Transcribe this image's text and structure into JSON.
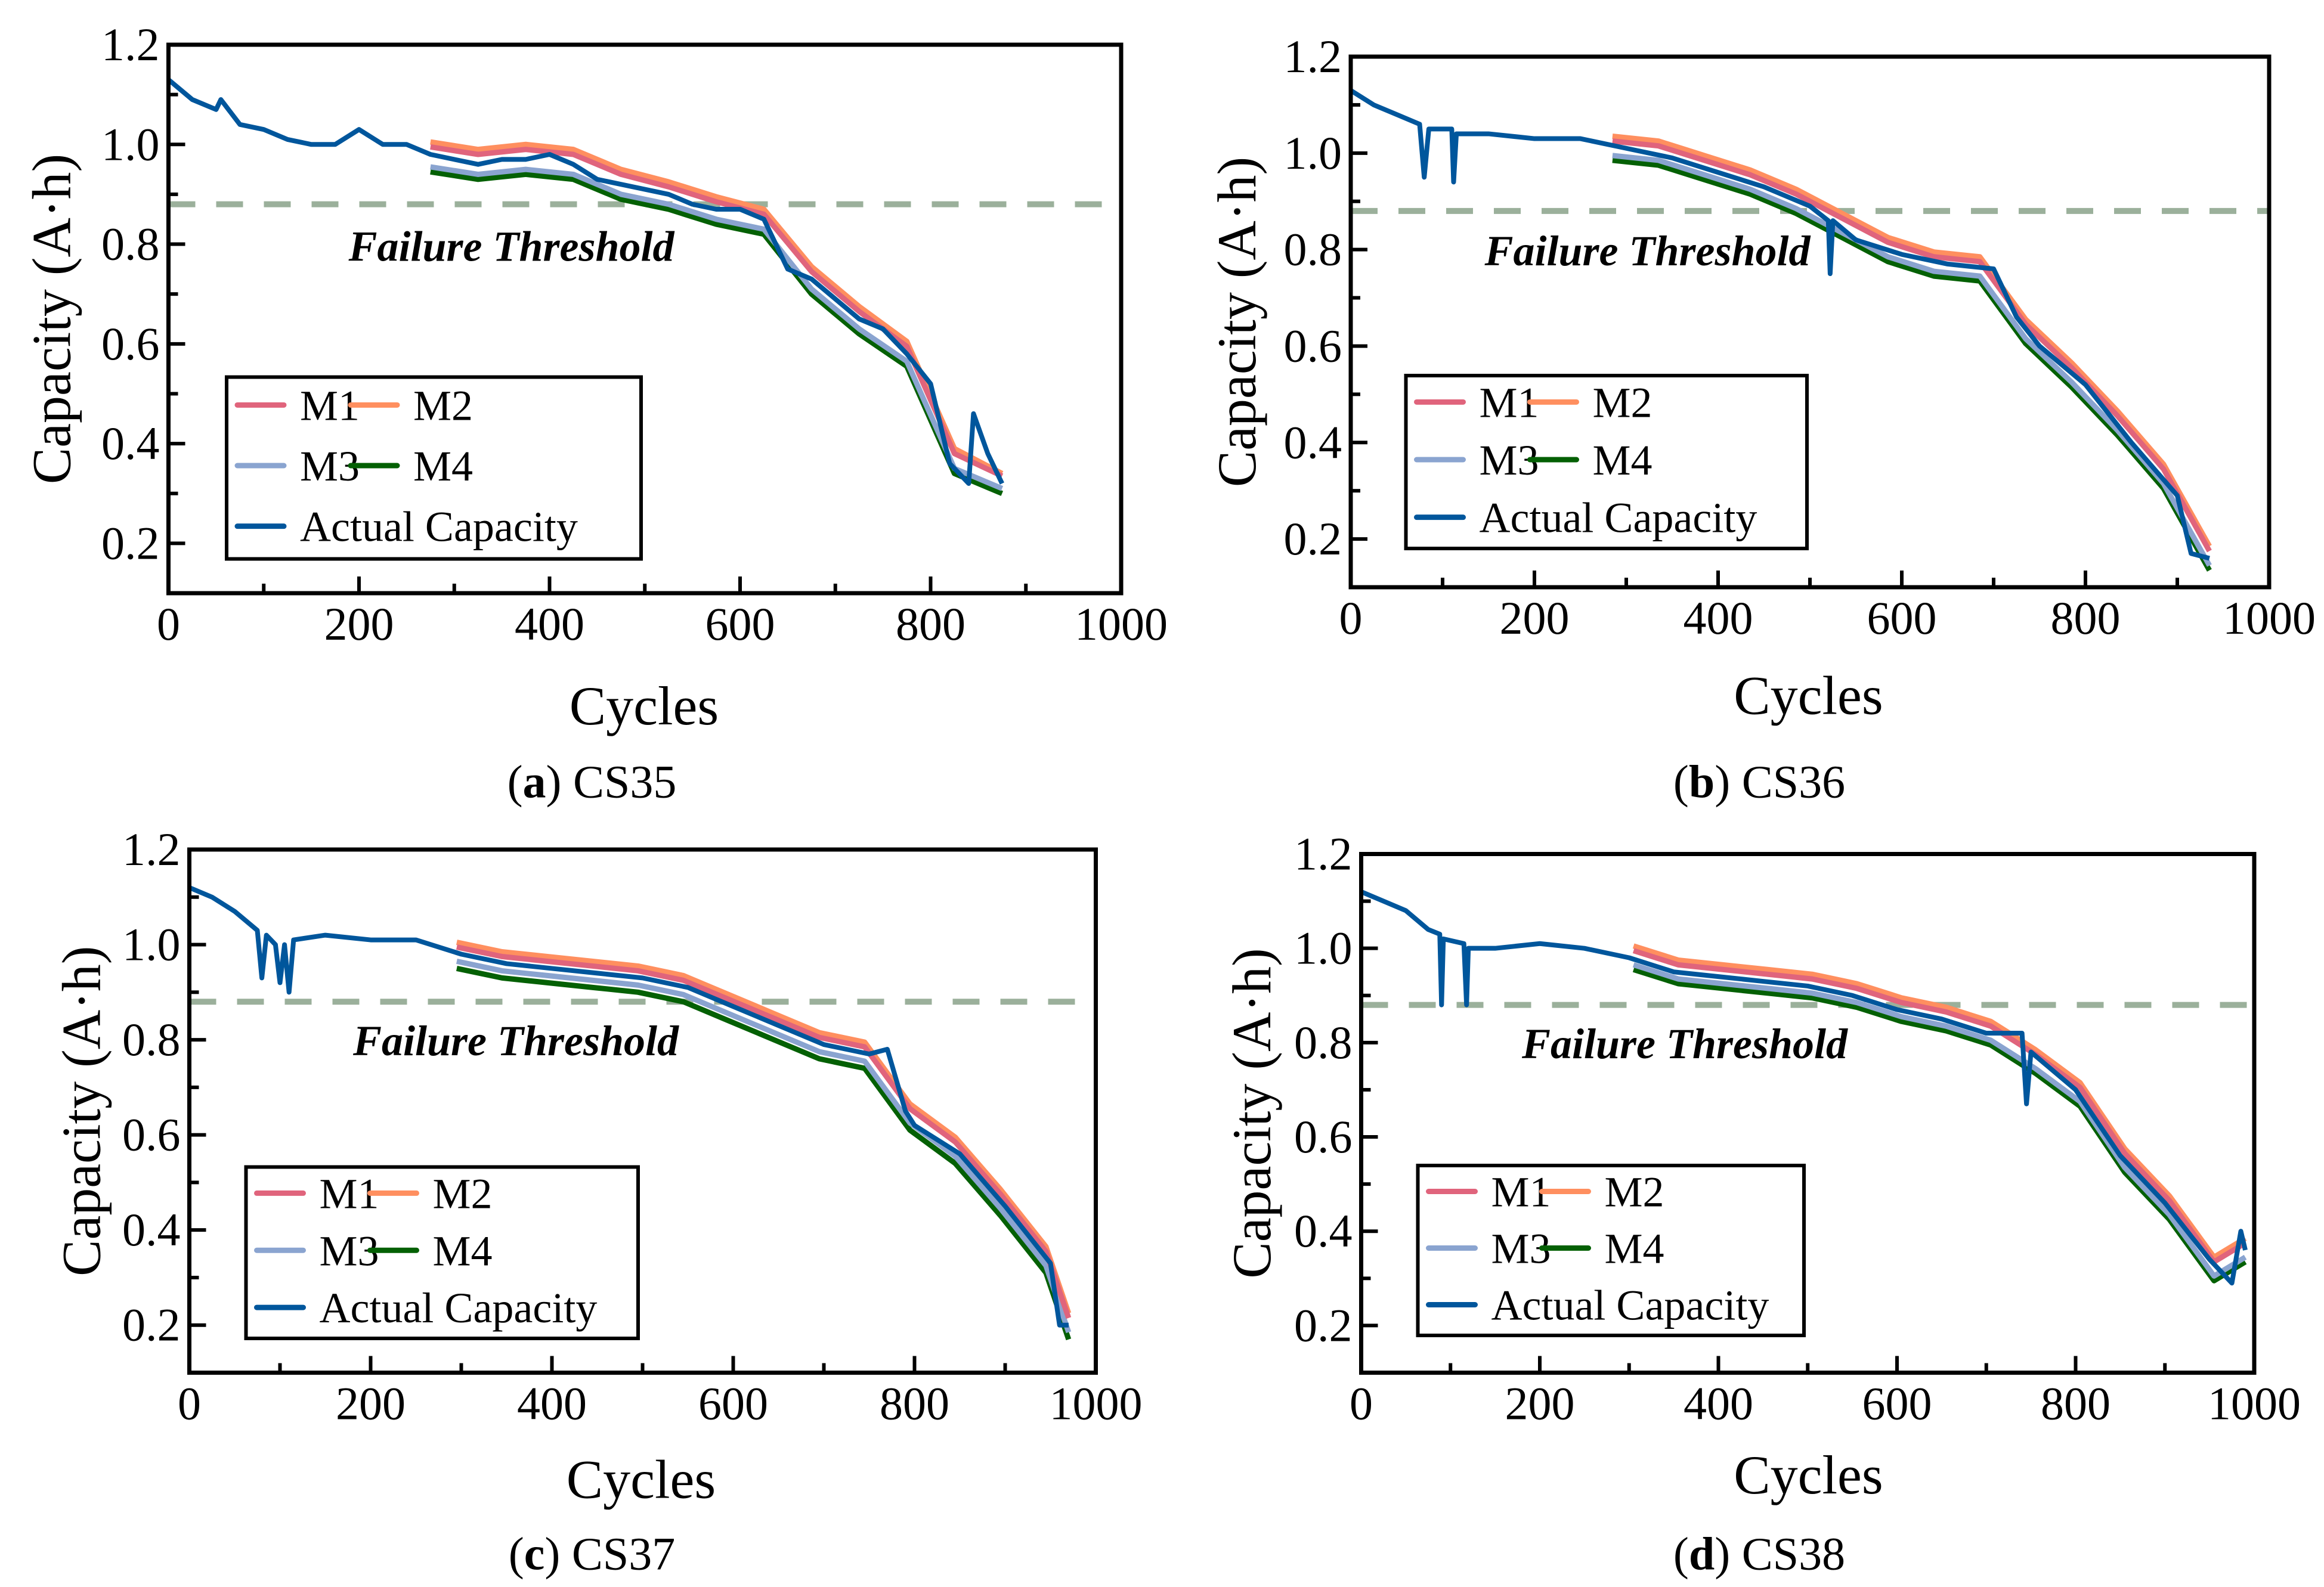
{
  "colors": {
    "M1": "#e0647c",
    "M2": "#ff8f5f",
    "M3": "#8aa4d0",
    "M4": "#046004",
    "Actual Capacity": "#00569c",
    "threshold": "#9bb09b",
    "threshold_label": "#990000"
  },
  "chart_data": [
    {
      "type": "line",
      "panel_letter": "a",
      "panel_name": "CS35",
      "xlabel": "Cycles",
      "ylabel": "Capacity (A·h)",
      "xlim": [
        0,
        1000
      ],
      "ylim": [
        0.1,
        1.2
      ],
      "xticks": [
        0,
        200,
        400,
        600,
        800,
        1000
      ],
      "yticks": [
        0.2,
        0.4,
        0.6,
        0.8,
        1.0,
        1.2
      ],
      "threshold": 0.88,
      "threshold_label": "Failure Threshold",
      "legend": [
        "M1",
        "M2",
        "M3",
        "M4",
        "Actual Capacity"
      ],
      "legend_position": "bottom-left",
      "actual": {
        "x": [
          0,
          25,
          50,
          55,
          75,
          100,
          125,
          150,
          175,
          200,
          225,
          250,
          275,
          300,
          325,
          350,
          375,
          400,
          425,
          450,
          475,
          500,
          525,
          550,
          575,
          600,
          625,
          650,
          675,
          700,
          725,
          750,
          775,
          800,
          820,
          840,
          845,
          860,
          875
        ],
        "y": [
          1.13,
          1.09,
          1.07,
          1.09,
          1.04,
          1.03,
          1.01,
          1.0,
          1.0,
          1.03,
          1.0,
          1.0,
          0.98,
          0.97,
          0.96,
          0.97,
          0.97,
          0.98,
          0.96,
          0.93,
          0.92,
          0.91,
          0.9,
          0.88,
          0.87,
          0.87,
          0.85,
          0.75,
          0.73,
          0.69,
          0.65,
          0.63,
          0.58,
          0.52,
          0.36,
          0.32,
          0.46,
          0.38,
          0.32
        ]
      },
      "models": {
        "x": [
          275,
          325,
          375,
          425,
          475,
          525,
          575,
          625,
          675,
          725,
          775,
          825,
          875
        ],
        "M1": [
          0.995,
          0.98,
          0.99,
          0.98,
          0.94,
          0.915,
          0.885,
          0.86,
          0.745,
          0.665,
          0.595,
          0.38,
          0.335
        ],
        "M2": [
          1.005,
          0.99,
          1.0,
          0.99,
          0.95,
          0.925,
          0.895,
          0.87,
          0.755,
          0.675,
          0.605,
          0.39,
          0.34
        ],
        "M3": [
          0.955,
          0.94,
          0.95,
          0.94,
          0.9,
          0.88,
          0.85,
          0.83,
          0.71,
          0.63,
          0.565,
          0.35,
          0.31
        ],
        "M4": [
          0.945,
          0.93,
          0.94,
          0.93,
          0.89,
          0.87,
          0.84,
          0.82,
          0.7,
          0.62,
          0.555,
          0.34,
          0.3
        ]
      }
    },
    {
      "type": "line",
      "panel_letter": "b",
      "panel_name": "CS36",
      "xlabel": "Cycles",
      "ylabel": "Capacity (A·h)",
      "xlim": [
        0,
        1000
      ],
      "ylim": [
        0.1,
        1.2
      ],
      "xticks": [
        0,
        200,
        400,
        600,
        800,
        1000
      ],
      "yticks": [
        0.2,
        0.4,
        0.6,
        0.8,
        1.0,
        1.2
      ],
      "threshold": 0.88,
      "threshold_label": "Failure Threshold",
      "legend": [
        "M1",
        "M2",
        "M3",
        "M4",
        "Actual Capacity"
      ],
      "legend_position": "bottom-left",
      "actual": {
        "x": [
          0,
          25,
          50,
          75,
          80,
          85,
          110,
          112,
          115,
          150,
          200,
          250,
          300,
          350,
          400,
          450,
          500,
          520,
          522,
          525,
          550,
          600,
          650,
          700,
          725,
          750,
          800,
          850,
          900,
          915,
          935
        ],
        "y": [
          1.13,
          1.1,
          1.08,
          1.06,
          0.95,
          1.05,
          1.05,
          0.94,
          1.04,
          1.04,
          1.03,
          1.03,
          1.01,
          0.99,
          0.96,
          0.93,
          0.89,
          0.86,
          0.75,
          0.86,
          0.82,
          0.79,
          0.77,
          0.76,
          0.66,
          0.6,
          0.52,
          0.4,
          0.29,
          0.17,
          0.16
        ]
      },
      "models": {
        "x": [
          285,
          335,
          385,
          435,
          485,
          535,
          585,
          635,
          685,
          735,
          785,
          835,
          885,
          935
        ],
        "M1": [
          1.025,
          1.015,
          0.985,
          0.955,
          0.915,
          0.865,
          0.815,
          0.785,
          0.775,
          0.645,
          0.555,
          0.455,
          0.345,
          0.175
        ],
        "M2": [
          1.035,
          1.025,
          0.995,
          0.965,
          0.925,
          0.875,
          0.825,
          0.795,
          0.785,
          0.655,
          0.565,
          0.465,
          0.355,
          0.185
        ],
        "M3": [
          0.995,
          0.985,
          0.955,
          0.925,
          0.885,
          0.835,
          0.785,
          0.755,
          0.745,
          0.615,
          0.525,
          0.425,
          0.315,
          0.145
        ],
        "M4": [
          0.985,
          0.975,
          0.945,
          0.915,
          0.875,
          0.825,
          0.775,
          0.745,
          0.735,
          0.605,
          0.515,
          0.415,
          0.305,
          0.135
        ]
      }
    },
    {
      "type": "line",
      "panel_letter": "c",
      "panel_name": "CS37",
      "xlabel": "Cycles",
      "ylabel": "Capacity (A·h)",
      "xlim": [
        0,
        1000
      ],
      "ylim": [
        0.1,
        1.2
      ],
      "xticks": [
        0,
        200,
        400,
        600,
        800,
        1000
      ],
      "yticks": [
        0.2,
        0.4,
        0.6,
        0.8,
        1.0,
        1.2
      ],
      "threshold": 0.88,
      "threshold_label": "Failure Threshold",
      "legend": [
        "M1",
        "M2",
        "M3",
        "M4",
        "Actual Capacity"
      ],
      "legend_position": "bottom-left",
      "actual": {
        "x": [
          0,
          25,
          50,
          75,
          80,
          85,
          95,
          100,
          105,
          110,
          115,
          150,
          200,
          250,
          300,
          350,
          400,
          450,
          500,
          550,
          600,
          650,
          700,
          750,
          770,
          790,
          800,
          850,
          900,
          950,
          960,
          970
        ],
        "y": [
          1.12,
          1.1,
          1.07,
          1.03,
          0.93,
          1.02,
          1.0,
          0.92,
          1.0,
          0.9,
          1.01,
          1.02,
          1.01,
          1.01,
          0.98,
          0.96,
          0.95,
          0.94,
          0.93,
          0.91,
          0.87,
          0.83,
          0.79,
          0.77,
          0.78,
          0.65,
          0.62,
          0.56,
          0.45,
          0.33,
          0.2,
          0.2
        ]
      },
      "models": {
        "x": [
          295,
          345,
          395,
          445,
          495,
          545,
          595,
          645,
          695,
          745,
          795,
          845,
          895,
          945,
          970
        ],
        "M1": [
          0.995,
          0.975,
          0.965,
          0.955,
          0.945,
          0.925,
          0.885,
          0.845,
          0.805,
          0.785,
          0.655,
          0.585,
          0.475,
          0.355,
          0.215
        ],
        "M2": [
          1.005,
          0.985,
          0.975,
          0.965,
          0.955,
          0.935,
          0.895,
          0.855,
          0.815,
          0.795,
          0.665,
          0.595,
          0.485,
          0.365,
          0.225
        ],
        "M3": [
          0.965,
          0.945,
          0.935,
          0.925,
          0.915,
          0.895,
          0.855,
          0.815,
          0.775,
          0.755,
          0.625,
          0.555,
          0.445,
          0.325,
          0.185
        ],
        "M4": [
          0.95,
          0.93,
          0.92,
          0.91,
          0.9,
          0.88,
          0.84,
          0.8,
          0.76,
          0.74,
          0.61,
          0.54,
          0.43,
          0.31,
          0.17
        ]
      }
    },
    {
      "type": "line",
      "panel_letter": "d",
      "panel_name": "CS38",
      "xlabel": "Cycles",
      "ylabel": "Capacity (A·h)",
      "xlim": [
        0,
        1000
      ],
      "ylim": [
        0.1,
        1.2
      ],
      "xticks": [
        0,
        200,
        400,
        600,
        800,
        1000
      ],
      "yticks": [
        0.2,
        0.4,
        0.6,
        0.8,
        1.0,
        1.2
      ],
      "threshold": 0.88,
      "threshold_label": "Failure Threshold",
      "legend": [
        "M1",
        "M2",
        "M3",
        "M4",
        "Actual Capacity"
      ],
      "legend_position": "bottom-left",
      "actual": {
        "x": [
          0,
          25,
          50,
          75,
          88,
          90,
          92,
          115,
          118,
          120,
          150,
          200,
          250,
          300,
          350,
          400,
          450,
          500,
          550,
          600,
          650,
          700,
          740,
          745,
          750,
          800,
          850,
          900,
          950,
          975,
          985,
          990
        ],
        "y": [
          1.12,
          1.1,
          1.08,
          1.04,
          1.03,
          0.88,
          1.02,
          1.01,
          0.88,
          1.0,
          1.0,
          1.01,
          1.0,
          0.98,
          0.95,
          0.94,
          0.93,
          0.92,
          0.9,
          0.87,
          0.85,
          0.82,
          0.82,
          0.67,
          0.78,
          0.7,
          0.56,
          0.46,
          0.34,
          0.29,
          0.4,
          0.36
        ]
      },
      "models": {
        "x": [
          305,
          355,
          405,
          455,
          505,
          555,
          605,
          655,
          705,
          755,
          805,
          855,
          905,
          955,
          990
        ],
        "M1": [
          0.995,
          0.965,
          0.955,
          0.945,
          0.935,
          0.915,
          0.885,
          0.865,
          0.835,
          0.775,
          0.705,
          0.565,
          0.465,
          0.335,
          0.375
        ],
        "M2": [
          1.005,
          0.975,
          0.965,
          0.955,
          0.945,
          0.925,
          0.895,
          0.875,
          0.845,
          0.785,
          0.715,
          0.575,
          0.475,
          0.345,
          0.385
        ],
        "M3": [
          0.965,
          0.935,
          0.925,
          0.915,
          0.905,
          0.885,
          0.855,
          0.835,
          0.805,
          0.745,
          0.675,
          0.535,
          0.435,
          0.305,
          0.345
        ],
        "M4": [
          0.955,
          0.925,
          0.915,
          0.905,
          0.895,
          0.875,
          0.845,
          0.825,
          0.795,
          0.735,
          0.665,
          0.525,
          0.425,
          0.295,
          0.335
        ]
      }
    }
  ]
}
